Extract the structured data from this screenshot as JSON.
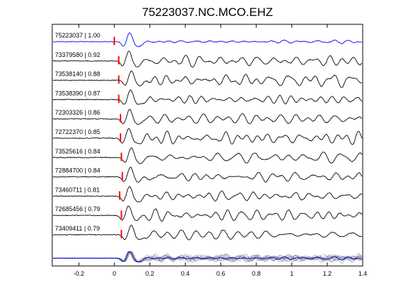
{
  "chart_data": {
    "type": "line",
    "title": "75223037.NC.MCO.EHZ",
    "xlabel": "",
    "ylabel": "",
    "xlim": [
      -0.35,
      1.4
    ],
    "x_ticks": [
      -0.2,
      0,
      0.2,
      0.4,
      0.6,
      0.8,
      1,
      1.2,
      1.4
    ],
    "x_tick_labels": [
      "-0.2",
      "0",
      "0.2",
      "0.4",
      "0.6",
      "0.8",
      "1",
      "1.2",
      "1.4"
    ],
    "grid": false,
    "pick_marker_color": "#ff0000",
    "series": [
      {
        "name": "75223037 | 1.00",
        "pick_x": 0.0,
        "color": "#0000ff"
      },
      {
        "name": "73379580 | 0.92",
        "pick_x": 0.025,
        "color": "#000000"
      },
      {
        "name": "73538140 | 0.88",
        "pick_x": 0.025,
        "color": "#000000"
      },
      {
        "name": "73538390 | 0.87",
        "pick_x": 0.025,
        "color": "#000000"
      },
      {
        "name": "72303326 | 0.86",
        "pick_x": 0.035,
        "color": "#000000"
      },
      {
        "name": "72722370 | 0.85",
        "pick_x": 0.035,
        "color": "#000000"
      },
      {
        "name": "73525616 | 0.84",
        "pick_x": 0.04,
        "color": "#000000"
      },
      {
        "name": "72884700 | 0.84",
        "pick_x": 0.045,
        "color": "#000000"
      },
      {
        "name": "73460711 | 0.81",
        "pick_x": 0.03,
        "color": "#000000"
      },
      {
        "name": "72685456 | 0.79",
        "pick_x": 0.04,
        "color": "#000000"
      },
      {
        "name": "73409411 | 0.79",
        "pick_x": 0.04,
        "color": "#000000"
      }
    ],
    "stack": {
      "name": "stack",
      "color": "#0000ff",
      "overlay_color": "#808080"
    }
  }
}
